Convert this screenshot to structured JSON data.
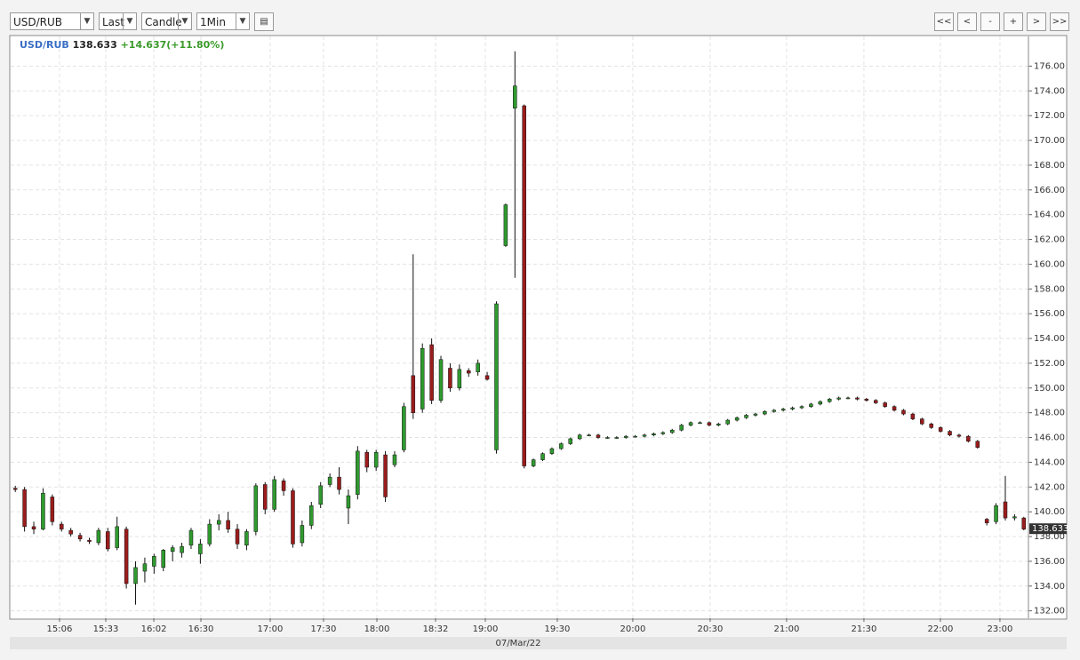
{
  "toolbar": {
    "symbol": "USD/RUB",
    "price_type": "Last",
    "chart_style": "Candle",
    "interval": "1Min",
    "nav_buttons": [
      "<<",
      "<",
      "-",
      "+",
      ">",
      ">>"
    ]
  },
  "chart_data": {
    "type": "candlestick",
    "last": 138.633,
    "change_label": "+14.637(+11.80%)",
    "x_label": "07/Mar/22",
    "grid": true,
    "up_color": "#2f9a2f",
    "down_color": "#9b1c1c",
    "wick_color": "#111111",
    "header_symbol_color": "#3a6fc4",
    "change_color": "#3a9a2a",
    "xlim": [
      0,
      110
    ],
    "xticks": [
      {
        "value": 5.28,
        "label": "15:06"
      },
      {
        "value": 10.28,
        "label": "15:33"
      },
      {
        "value": 15.47,
        "label": "16:02"
      },
      {
        "value": 20.56,
        "label": "16:30"
      },
      {
        "value": 28.05,
        "label": "17:00"
      },
      {
        "value": 33.81,
        "label": "17:30"
      },
      {
        "value": 39.58,
        "label": "18:00"
      },
      {
        "value": 45.92,
        "label": "18:32"
      },
      {
        "value": 51.3,
        "label": "19:00"
      },
      {
        "value": 59.08,
        "label": "19:30"
      },
      {
        "value": 67.24,
        "label": "20:00"
      },
      {
        "value": 75.6,
        "label": "20:30"
      },
      {
        "value": 83.86,
        "label": "21:00"
      },
      {
        "value": 92.22,
        "label": "21:30"
      },
      {
        "value": 100.48,
        "label": "22:00"
      },
      {
        "value": 106.92,
        "label": "23:00"
      }
    ],
    "ylim": [
      131.4,
      178.4
    ],
    "yticks": [
      {
        "value": 132,
        "label": "132.00"
      },
      {
        "value": 134,
        "label": "134.00"
      },
      {
        "value": 136,
        "label": "136.00"
      },
      {
        "value": 138,
        "label": "138.00"
      },
      {
        "value": 140,
        "label": "140.00"
      },
      {
        "value": 142,
        "label": "142.00"
      },
      {
        "value": 144,
        "label": "144.00"
      },
      {
        "value": 146,
        "label": "146.00"
      },
      {
        "value": 148,
        "label": "148.00"
      },
      {
        "value": 150,
        "label": "150.00"
      },
      {
        "value": 152,
        "label": "152.00"
      },
      {
        "value": 154,
        "label": "154.00"
      },
      {
        "value": 156,
        "label": "156.00"
      },
      {
        "value": 158,
        "label": "158.00"
      },
      {
        "value": 160,
        "label": "160.00"
      },
      {
        "value": 162,
        "label": "162.00"
      },
      {
        "value": 164,
        "label": "164.00"
      },
      {
        "value": 166,
        "label": "166.00"
      },
      {
        "value": 168,
        "label": "168.00"
      },
      {
        "value": 170,
        "label": "170.00"
      },
      {
        "value": 172,
        "label": "172.00"
      },
      {
        "value": 174,
        "label": "174.00"
      },
      {
        "value": 176,
        "label": "176.00"
      }
    ],
    "series": [
      {
        "name": "USD/RUB",
        "open": [
          141.9,
          141.8,
          138.8,
          138.6,
          141.2,
          139.0,
          138.5,
          138.1,
          137.7,
          137.5,
          138.4,
          137.1,
          138.6,
          134.2,
          135.2,
          135.6,
          135.5,
          136.8,
          136.7,
          137.3,
          136.6,
          137.4,
          139.0,
          139.3,
          138.6,
          137.3,
          138.4,
          142.2,
          140.2,
          142.5,
          141.7,
          137.5,
          138.9,
          140.6,
          142.2,
          142.8,
          140.3,
          141.4,
          144.8,
          143.6,
          144.6,
          143.8,
          145.0,
          151.0,
          148.3,
          153.5,
          149.0,
          151.6,
          150.0,
          151.4,
          151.3,
          151.0,
          145.0,
          161.5,
          172.6,
          172.8,
          143.7,
          144.2,
          144.7,
          145.1,
          145.5,
          145.9,
          146.2,
          146.2,
          146.0,
          146.0,
          146.0,
          146.1,
          146.1,
          146.2,
          146.3,
          146.4,
          146.6,
          147.0,
          147.2,
          147.2,
          147.0,
          147.1,
          147.4,
          147.6,
          147.8,
          147.9,
          148.1,
          148.2,
          148.3,
          148.4,
          148.5,
          148.7,
          148.9,
          149.1,
          149.2,
          149.2,
          149.1,
          149.0,
          148.8,
          148.5,
          148.2,
          147.9,
          147.5,
          147.1,
          146.8,
          146.5,
          146.2,
          146.1,
          145.7,
          139.4,
          139.2,
          140.8,
          139.5,
          139.5
        ],
        "high": [
          142.1,
          142.0,
          139.2,
          141.9,
          141.4,
          139.2,
          138.7,
          138.3,
          137.9,
          138.7,
          138.7,
          139.6,
          138.8,
          136.0,
          136.3,
          136.6,
          137.0,
          137.3,
          137.5,
          138.7,
          137.8,
          139.4,
          139.8,
          140.0,
          139.0,
          138.6,
          142.3,
          142.4,
          142.9,
          142.7,
          141.9,
          139.3,
          140.8,
          142.4,
          143.1,
          143.6,
          141.8,
          145.3,
          145.0,
          145.0,
          144.9,
          144.9,
          148.8,
          160.8,
          153.6,
          154.0,
          152.6,
          152.0,
          151.9,
          151.6,
          152.3,
          151.3,
          157.0,
          164.9,
          177.2,
          172.9,
          144.3,
          144.8,
          145.2,
          145.6,
          146.0,
          146.3,
          146.3,
          146.3,
          146.1,
          146.1,
          146.2,
          146.2,
          146.3,
          146.4,
          146.5,
          146.7,
          147.1,
          147.3,
          147.3,
          147.3,
          147.2,
          147.5,
          147.7,
          147.9,
          148.0,
          148.2,
          148.3,
          148.4,
          148.5,
          148.6,
          148.8,
          149.0,
          149.2,
          149.3,
          149.3,
          149.3,
          149.2,
          149.1,
          148.9,
          148.6,
          148.3,
          148.0,
          147.6,
          147.2,
          146.9,
          146.6,
          146.3,
          146.2,
          145.8,
          139.5,
          140.7,
          142.9,
          139.8,
          139.6
        ],
        "low": [
          141.6,
          138.4,
          138.2,
          138.5,
          138.9,
          138.4,
          138.0,
          137.6,
          137.4,
          137.3,
          136.8,
          136.9,
          133.8,
          132.5,
          134.3,
          135.0,
          135.2,
          136.0,
          136.3,
          137.0,
          135.8,
          137.2,
          138.5,
          138.3,
          137.0,
          136.9,
          138.1,
          139.8,
          140.0,
          141.3,
          137.1,
          137.2,
          138.6,
          140.3,
          142.0,
          141.4,
          139.0,
          141.0,
          143.2,
          143.3,
          140.8,
          143.6,
          144.8,
          147.5,
          148.0,
          148.7,
          148.8,
          149.7,
          149.8,
          150.9,
          151.0,
          150.6,
          144.7,
          161.4,
          158.9,
          143.5,
          143.6,
          144.1,
          144.6,
          145.0,
          145.4,
          145.8,
          146.1,
          145.9,
          145.9,
          145.9,
          145.9,
          146.0,
          146.0,
          146.1,
          146.2,
          146.3,
          146.5,
          146.9,
          147.1,
          146.9,
          146.9,
          147.0,
          147.3,
          147.5,
          147.7,
          147.8,
          148.0,
          148.1,
          148.2,
          148.3,
          148.4,
          148.6,
          148.8,
          149.0,
          149.1,
          149.0,
          148.9,
          148.7,
          148.4,
          148.1,
          147.8,
          147.4,
          147.0,
          146.7,
          146.4,
          146.1,
          146.0,
          145.6,
          145.1,
          138.9,
          139.0,
          139.3,
          139.3,
          138.5
        ],
        "close": [
          141.8,
          138.8,
          138.6,
          141.5,
          139.2,
          138.6,
          138.2,
          137.8,
          137.6,
          138.5,
          137.0,
          138.8,
          134.2,
          135.5,
          135.8,
          136.4,
          136.9,
          137.1,
          137.2,
          138.5,
          137.4,
          139.0,
          139.3,
          138.6,
          137.4,
          138.4,
          142.1,
          140.2,
          142.6,
          141.7,
          137.4,
          138.9,
          140.5,
          142.1,
          142.8,
          141.8,
          141.3,
          144.9,
          143.6,
          144.8,
          141.2,
          144.6,
          148.5,
          148.0,
          153.2,
          149.0,
          152.3,
          150.0,
          151.5,
          151.2,
          152.0,
          150.7,
          156.8,
          164.8,
          174.4,
          143.7,
          144.2,
          144.7,
          145.1,
          145.5,
          145.9,
          146.2,
          146.2,
          146.0,
          146.0,
          146.0,
          146.1,
          146.1,
          146.2,
          146.3,
          146.4,
          146.6,
          147.0,
          147.2,
          147.2,
          147.0,
          147.1,
          147.4,
          147.6,
          147.8,
          147.9,
          148.1,
          148.2,
          148.3,
          148.4,
          148.5,
          148.7,
          148.9,
          149.1,
          149.2,
          149.2,
          149.1,
          149.0,
          148.8,
          148.5,
          148.2,
          147.9,
          147.5,
          147.1,
          146.8,
          146.5,
          146.2,
          146.1,
          145.7,
          145.2,
          139.1,
          140.5,
          139.5,
          139.6,
          138.6
        ]
      }
    ]
  }
}
